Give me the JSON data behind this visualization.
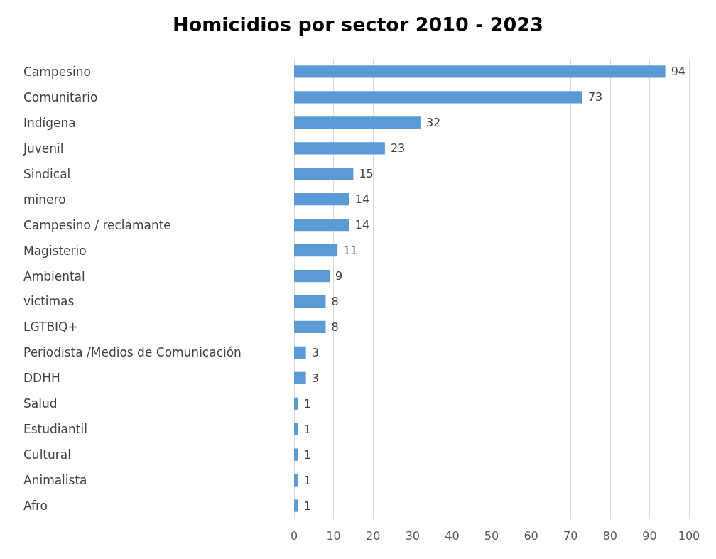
{
  "chart_data": {
    "type": "bar",
    "orientation": "horizontal",
    "title": "Homicidios por sector 2010 - 2023",
    "categories": [
      "Campesino",
      "Comunitario",
      "Indígena",
      "Juvenil",
      "Sindical",
      "minero",
      "Campesino / reclamante",
      "Magisterio",
      "Ambiental",
      "victimas",
      "LGTBIQ+",
      "Periodista /Medios de Comunicación",
      "DDHH",
      "Salud",
      "Estudiantil",
      "Cultural",
      "Animalista",
      "Afro"
    ],
    "values": [
      94,
      73,
      32,
      23,
      15,
      14,
      14,
      11,
      9,
      8,
      8,
      3,
      3,
      1,
      1,
      1,
      1,
      1
    ],
    "color": "#5b9bd5",
    "xlim": [
      0,
      100
    ],
    "xticks": [
      0,
      10,
      20,
      30,
      40,
      50,
      60,
      70,
      80,
      90,
      100
    ],
    "grid": "x",
    "data_labels": true
  }
}
